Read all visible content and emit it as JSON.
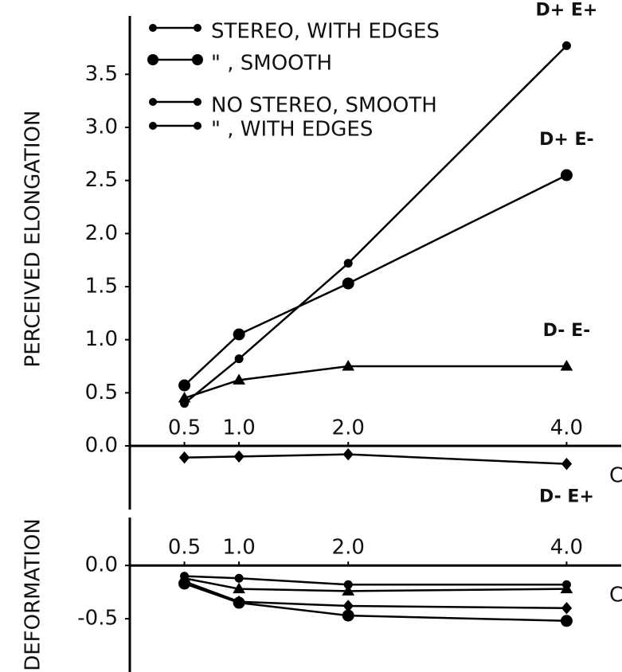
{
  "chart_data": [
    {
      "type": "line",
      "ylabel": "PERCEIVED ELONGATION",
      "xlabel": "C",
      "x": [
        0.5,
        1.0,
        2.0,
        4.0
      ],
      "xlim": [
        0,
        4.5
      ],
      "xticks": [
        0.5,
        {
          "value": 1,
          "label": "1.0"
        },
        {
          "value": 2,
          "label": "2.0"
        },
        {
          "value": 4,
          "label": "4.0"
        }
      ],
      "ylim": [
        -0.6,
        4.05
      ],
      "yticks": [
        {
          "value": 0,
          "label": "0.0"
        },
        0.5,
        {
          "value": 1,
          "label": "1.0"
        },
        1.5,
        {
          "value": 2,
          "label": "2.0"
        },
        2.5,
        {
          "value": 3,
          "label": "3.0"
        },
        3.5
      ],
      "legend": "upper left",
      "series": [
        {
          "name": "STEREO, WITH EDGES",
          "label": "D+ E+",
          "marker": "circle",
          "color": "#000000",
          "values": [
            0.4,
            0.82,
            1.72,
            3.77
          ]
        },
        {
          "name": "\"     , SMOOTH",
          "label": "D+ E-",
          "marker": "square",
          "color": "#000000",
          "values": [
            0.57,
            1.05,
            1.53,
            2.55
          ]
        },
        {
          "name": "NO STEREO, SMOOTH",
          "label": "D- E-",
          "marker": "triangle",
          "color": "#000000",
          "values": [
            0.45,
            0.62,
            0.75,
            0.75
          ]
        },
        {
          "name": "\"     , WITH EDGES",
          "label": "D- E+",
          "marker": "diamond",
          "color": "#000000",
          "values": [
            -0.11,
            -0.1,
            -0.08,
            -0.17
          ]
        }
      ]
    },
    {
      "type": "line",
      "ylabel": "DEFORMATION",
      "xlabel": "C",
      "x": [
        0.5,
        1.0,
        2.0,
        4.0
      ],
      "xlim": [
        0,
        4.5
      ],
      "xticks": [
        0.5,
        {
          "value": 1,
          "label": "1.0"
        },
        {
          "value": 2,
          "label": "2.0"
        },
        {
          "value": 4,
          "label": "4.0"
        }
      ],
      "ylim": [
        -1.0,
        0.45
      ],
      "yticks": [
        {
          "value": 0,
          "label": "0.0"
        },
        -0.5
      ],
      "series": [
        {
          "marker": "circle",
          "color": "#000000",
          "values": [
            -0.1,
            -0.12,
            -0.18,
            -0.18
          ]
        },
        {
          "marker": "square",
          "color": "#000000",
          "values": [
            -0.17,
            -0.35,
            -0.47,
            -0.52
          ]
        },
        {
          "marker": "triangle",
          "color": "#000000",
          "values": [
            -0.12,
            -0.22,
            -0.24,
            -0.22
          ]
        },
        {
          "marker": "diamond",
          "color": "#000000",
          "values": [
            -0.15,
            -0.34,
            -0.38,
            -0.4
          ]
        }
      ]
    }
  ]
}
